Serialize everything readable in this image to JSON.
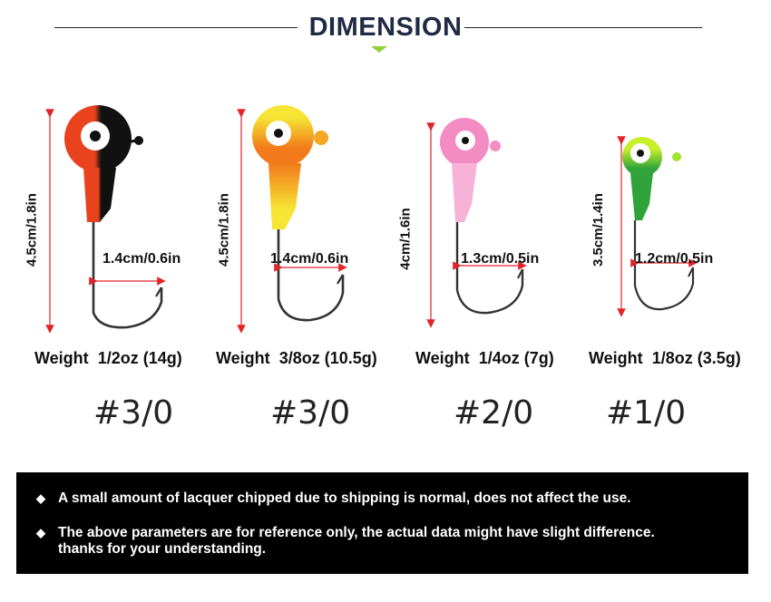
{
  "header": {
    "title": "DIMENSION"
  },
  "products": [
    {
      "length": "4.5cm/1.8in",
      "width": "1.4cm/0.6in",
      "weight_label": "Weight",
      "weight": "1/2oz (14g)",
      "hook_size": "#3/0",
      "colors": [
        "#e8421e",
        "#111111"
      ]
    },
    {
      "length": "4.5cm/1.8in",
      "width": "1.4cm/0.6in",
      "weight_label": "Weight",
      "weight": "3/8oz (10.5g)",
      "hook_size": "#3/0",
      "colors": [
        "#f6e534",
        "#f27a1a"
      ]
    },
    {
      "length": "4cm/1.6in",
      "width": "1.3cm/0.5in",
      "weight_label": "Weight",
      "weight": "1/4oz (7g)",
      "hook_size": "#2/0",
      "colors": [
        "#f48cc4",
        "#f7b2d8"
      ]
    },
    {
      "length": "3.5cm/1.4in",
      "width": "1.2cm/0.5in",
      "weight_label": "Weight",
      "weight": "1/8oz (3.5g)",
      "hook_size": "#1/0",
      "colors": [
        "#9fe52d",
        "#2fa33a"
      ]
    }
  ],
  "notes": [
    "A small amount of lacquer chipped due to shipping is normal, does not affect the use.",
    "The above parameters are for reference only, the actual data might have slight difference.",
    "thanks for your understanding."
  ],
  "colors": {
    "title": "#1f2a44",
    "accent": "#8fd13a",
    "arrow": "#e0242a"
  }
}
